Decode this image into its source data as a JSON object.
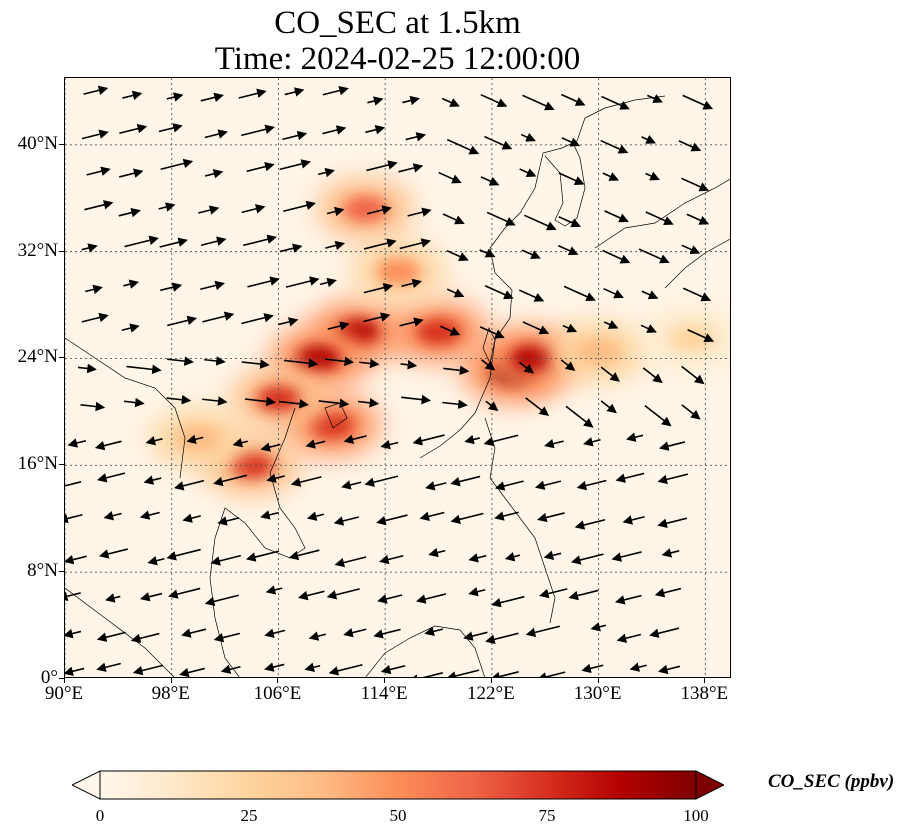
{
  "title": {
    "line1": "CO_SEC at 1.5km",
    "line2": "Time: 2024-02-25 12:00:00"
  },
  "map": {
    "region": "East and Southeast Asia",
    "projection": "PlateCarree",
    "lon_range": [
      90,
      140
    ],
    "lat_range": [
      0,
      45
    ],
    "gridlines": true,
    "lat_ticks": [
      {
        "value": 40,
        "label": "40°N"
      },
      {
        "value": 32,
        "label": "32°N"
      },
      {
        "value": 24,
        "label": "24°N"
      },
      {
        "value": 16,
        "label": "16°N"
      },
      {
        "value": 8,
        "label": "8°N"
      },
      {
        "value": 0,
        "label": "0°"
      }
    ],
    "lon_ticks": [
      {
        "value": 90,
        "label": "90°E"
      },
      {
        "value": 98,
        "label": "98°E"
      },
      {
        "value": 106,
        "label": "106°E"
      },
      {
        "value": 114,
        "label": "114°E"
      },
      {
        "value": 122,
        "label": "122°E"
      },
      {
        "value": 130,
        "label": "130°E"
      },
      {
        "value": 138,
        "label": "138°E"
      }
    ],
    "field": "CO_SEC concentration (ppbv), filled contours",
    "wind_vectors": true,
    "plumes": [
      {
        "lon": 123.5,
        "lat": 23.0,
        "value": 100
      },
      {
        "lon": 125.0,
        "lat": 24.0,
        "value": 90
      },
      {
        "lon": 112.0,
        "lat": 26.0,
        "value": 90
      },
      {
        "lon": 118.0,
        "lat": 26.0,
        "value": 80
      },
      {
        "lon": 109.0,
        "lat": 24.0,
        "value": 85
      },
      {
        "lon": 110.0,
        "lat": 19.0,
        "value": 80
      },
      {
        "lon": 104.0,
        "lat": 16.0,
        "value": 70
      },
      {
        "lon": 106.0,
        "lat": 21.0,
        "value": 75
      },
      {
        "lon": 115.0,
        "lat": 30.5,
        "value": 55
      },
      {
        "lon": 112.5,
        "lat": 35.2,
        "value": 60
      },
      {
        "lon": 130.0,
        "lat": 24.5,
        "value": 40
      },
      {
        "lon": 137.0,
        "lat": 25.5,
        "value": 30
      },
      {
        "lon": 100.0,
        "lat": 18.0,
        "value": 35
      }
    ]
  },
  "colorbar": {
    "label": "CO_SEC (ppbv)",
    "min": 0,
    "max": 100,
    "extend": "both",
    "colormap": "OrRd",
    "ticks": [
      {
        "value": 0,
        "label": "0"
      },
      {
        "value": 25,
        "label": "25"
      },
      {
        "value": 50,
        "label": "50"
      },
      {
        "value": 75,
        "label": "75"
      },
      {
        "value": 100,
        "label": "100"
      }
    ],
    "colors": [
      "#fff7ec",
      "#fee8c8",
      "#fdd49e",
      "#fdbb84",
      "#fc8d59",
      "#ef6548",
      "#d7301f",
      "#b30000",
      "#7f0000"
    ]
  }
}
